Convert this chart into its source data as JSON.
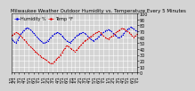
{
  "title": "Milwaukee Weather Outdoor Humidity vs. Temperature Every 5 Minutes",
  "bg_color": "#d4d4d4",
  "plot_bg_color": "#d4d4d4",
  "grid_color": "#ffffff",
  "humidity": [
    58,
    55,
    52,
    50,
    55,
    60,
    65,
    68,
    72,
    74,
    76,
    75,
    73,
    70,
    67,
    64,
    61,
    58,
    55,
    53,
    51,
    50,
    52,
    54,
    57,
    60,
    63,
    65,
    67,
    68,
    67,
    65,
    62,
    59,
    56,
    54,
    52,
    51,
    53,
    56,
    59,
    62,
    64,
    66,
    67,
    68,
    67,
    65,
    62,
    59,
    57,
    55,
    54,
    56,
    58,
    61,
    64,
    66,
    68,
    70,
    72,
    73,
    72,
    70,
    67,
    64,
    62,
    60,
    59,
    61,
    64,
    67,
    70,
    73,
    75,
    77,
    76,
    74,
    72,
    70
  ],
  "temperature": [
    62,
    64,
    66,
    68,
    67,
    65,
    62,
    59,
    56,
    53,
    50,
    47,
    44,
    42,
    39,
    36,
    34,
    31,
    29,
    27,
    25,
    23,
    21,
    19,
    17,
    15,
    16,
    18,
    21,
    24,
    27,
    30,
    34,
    38,
    42,
    46,
    44,
    42,
    40,
    38,
    36,
    38,
    41,
    44,
    47,
    50,
    53,
    55,
    57,
    59,
    61,
    63,
    65,
    67,
    68,
    70,
    68,
    65,
    62,
    60,
    58,
    57,
    59,
    61,
    63,
    66,
    68,
    70,
    72,
    74,
    75,
    74,
    72,
    70,
    68,
    65,
    62,
    60,
    62,
    65
  ],
  "humidity_color": "#0000dd",
  "temperature_color": "#dd0000",
  "ylim": [
    0,
    100
  ],
  "temp_ylim": [
    0,
    100
  ],
  "n_points": 80,
  "tick_fontsize": 3.5,
  "title_fontsize": 4.0,
  "marker_size": 0.8,
  "linewidth": 0.5,
  "legend_fontsize": 3.5
}
